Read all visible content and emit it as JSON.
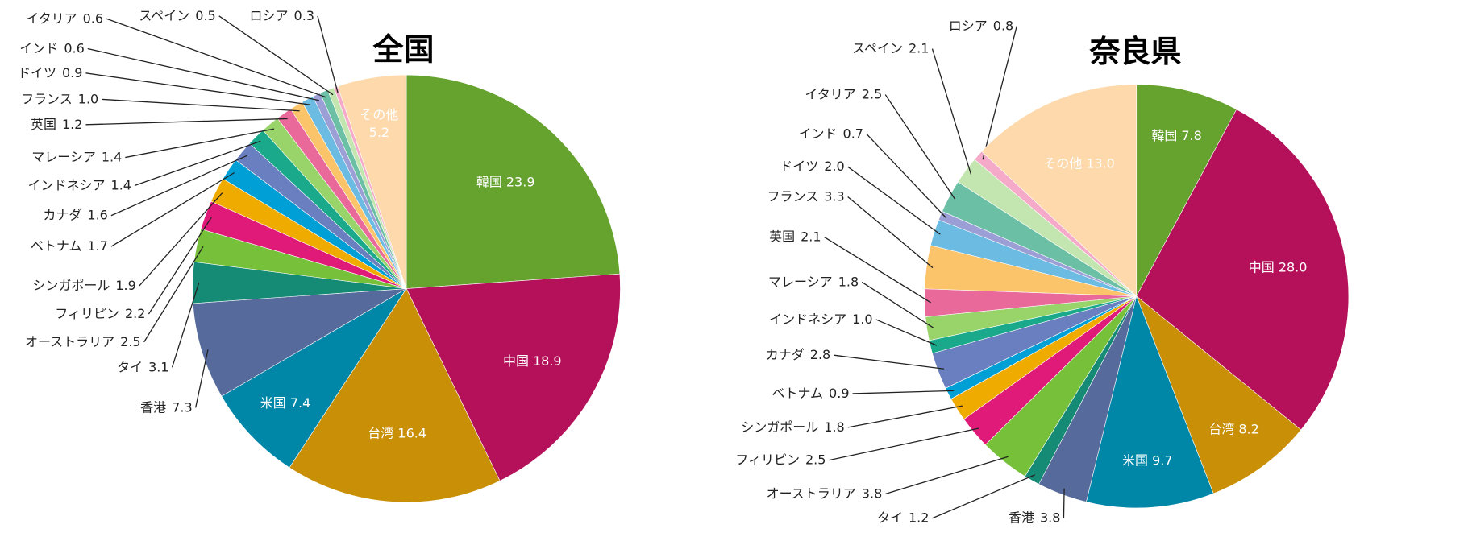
{
  "chart_data": [
    {
      "type": "pie",
      "title": "全国",
      "categories": [
        "韓国",
        "中国",
        "台湾",
        "米国",
        "香港",
        "タイ",
        "オーストラリア",
        "フィリピン",
        "シンガポール",
        "ベトナム",
        "カナダ",
        "インドネシア",
        "マレーシア",
        "英国",
        "フランス",
        "ドイツ",
        "インド",
        "イタリア",
        "スペイン",
        "ロシア",
        "その他"
      ],
      "values": [
        23.9,
        18.9,
        16.4,
        7.4,
        7.3,
        3.1,
        2.5,
        2.2,
        1.9,
        1.7,
        1.6,
        1.4,
        1.4,
        1.2,
        1.0,
        0.9,
        0.6,
        0.6,
        0.5,
        0.3,
        5.2
      ],
      "value_labels": [
        "23.9",
        "18.9",
        "16.4",
        "7.4",
        "7.3",
        "3.1",
        "2.5",
        "2.2",
        "1.9",
        "1.7",
        "1.6",
        "1.4",
        "1.4",
        "1.2",
        "1.0",
        "0.9",
        "0.6",
        "0.6",
        "0.5",
        "0.3",
        "5.2"
      ],
      "colors": [
        "#66a22e",
        "#b5115a",
        "#c98f06",
        "#0087a8",
        "#566a9b",
        "#158a74",
        "#77c03a",
        "#e01a78",
        "#f0ab00",
        "#00a0d6",
        "#6a7fbf",
        "#1aa98a",
        "#98d46a",
        "#e9699a",
        "#fbc46a",
        "#6bbbe3",
        "#9b9fd6",
        "#6bbfa5",
        "#c3e6b0",
        "#f4aac8",
        "#fdd9ac"
      ]
    },
    {
      "type": "pie",
      "title": "奈良県",
      "categories": [
        "韓国",
        "中国",
        "台湾",
        "米国",
        "香港",
        "タイ",
        "オーストラリア",
        "フィリピン",
        "シンガポール",
        "ベトナム",
        "カナダ",
        "インドネシア",
        "マレーシア",
        "英国",
        "フランス",
        "ドイツ",
        "インド",
        "イタリア",
        "スペイン",
        "ロシア",
        "その他"
      ],
      "values": [
        7.8,
        28.0,
        8.2,
        9.7,
        3.8,
        1.2,
        3.8,
        2.5,
        1.8,
        0.9,
        2.8,
        1.0,
        1.8,
        2.1,
        3.3,
        2.0,
        0.7,
        2.5,
        2.1,
        0.8,
        13.0
      ],
      "value_labels": [
        "7.8",
        "28.0",
        "8.2",
        "9.7",
        "3.8",
        "1.2",
        "3.8",
        "2.5",
        "1.8",
        "0.9",
        "2.8",
        "1.0",
        "1.8",
        "2.1",
        "3.3",
        "2.0",
        "0.7",
        "2.5",
        "2.1",
        "0.8",
        "13.0"
      ],
      "colors": [
        "#66a22e",
        "#b5115a",
        "#c98f06",
        "#0087a8",
        "#566a9b",
        "#158a74",
        "#77c03a",
        "#e01a78",
        "#f0ab00",
        "#00a0d6",
        "#6a7fbf",
        "#1aa98a",
        "#98d46a",
        "#e9699a",
        "#fbc46a",
        "#6bbbe3",
        "#9b9fd6",
        "#6bbfa5",
        "#c3e6b0",
        "#f4aac8",
        "#fdd9ac"
      ]
    }
  ]
}
